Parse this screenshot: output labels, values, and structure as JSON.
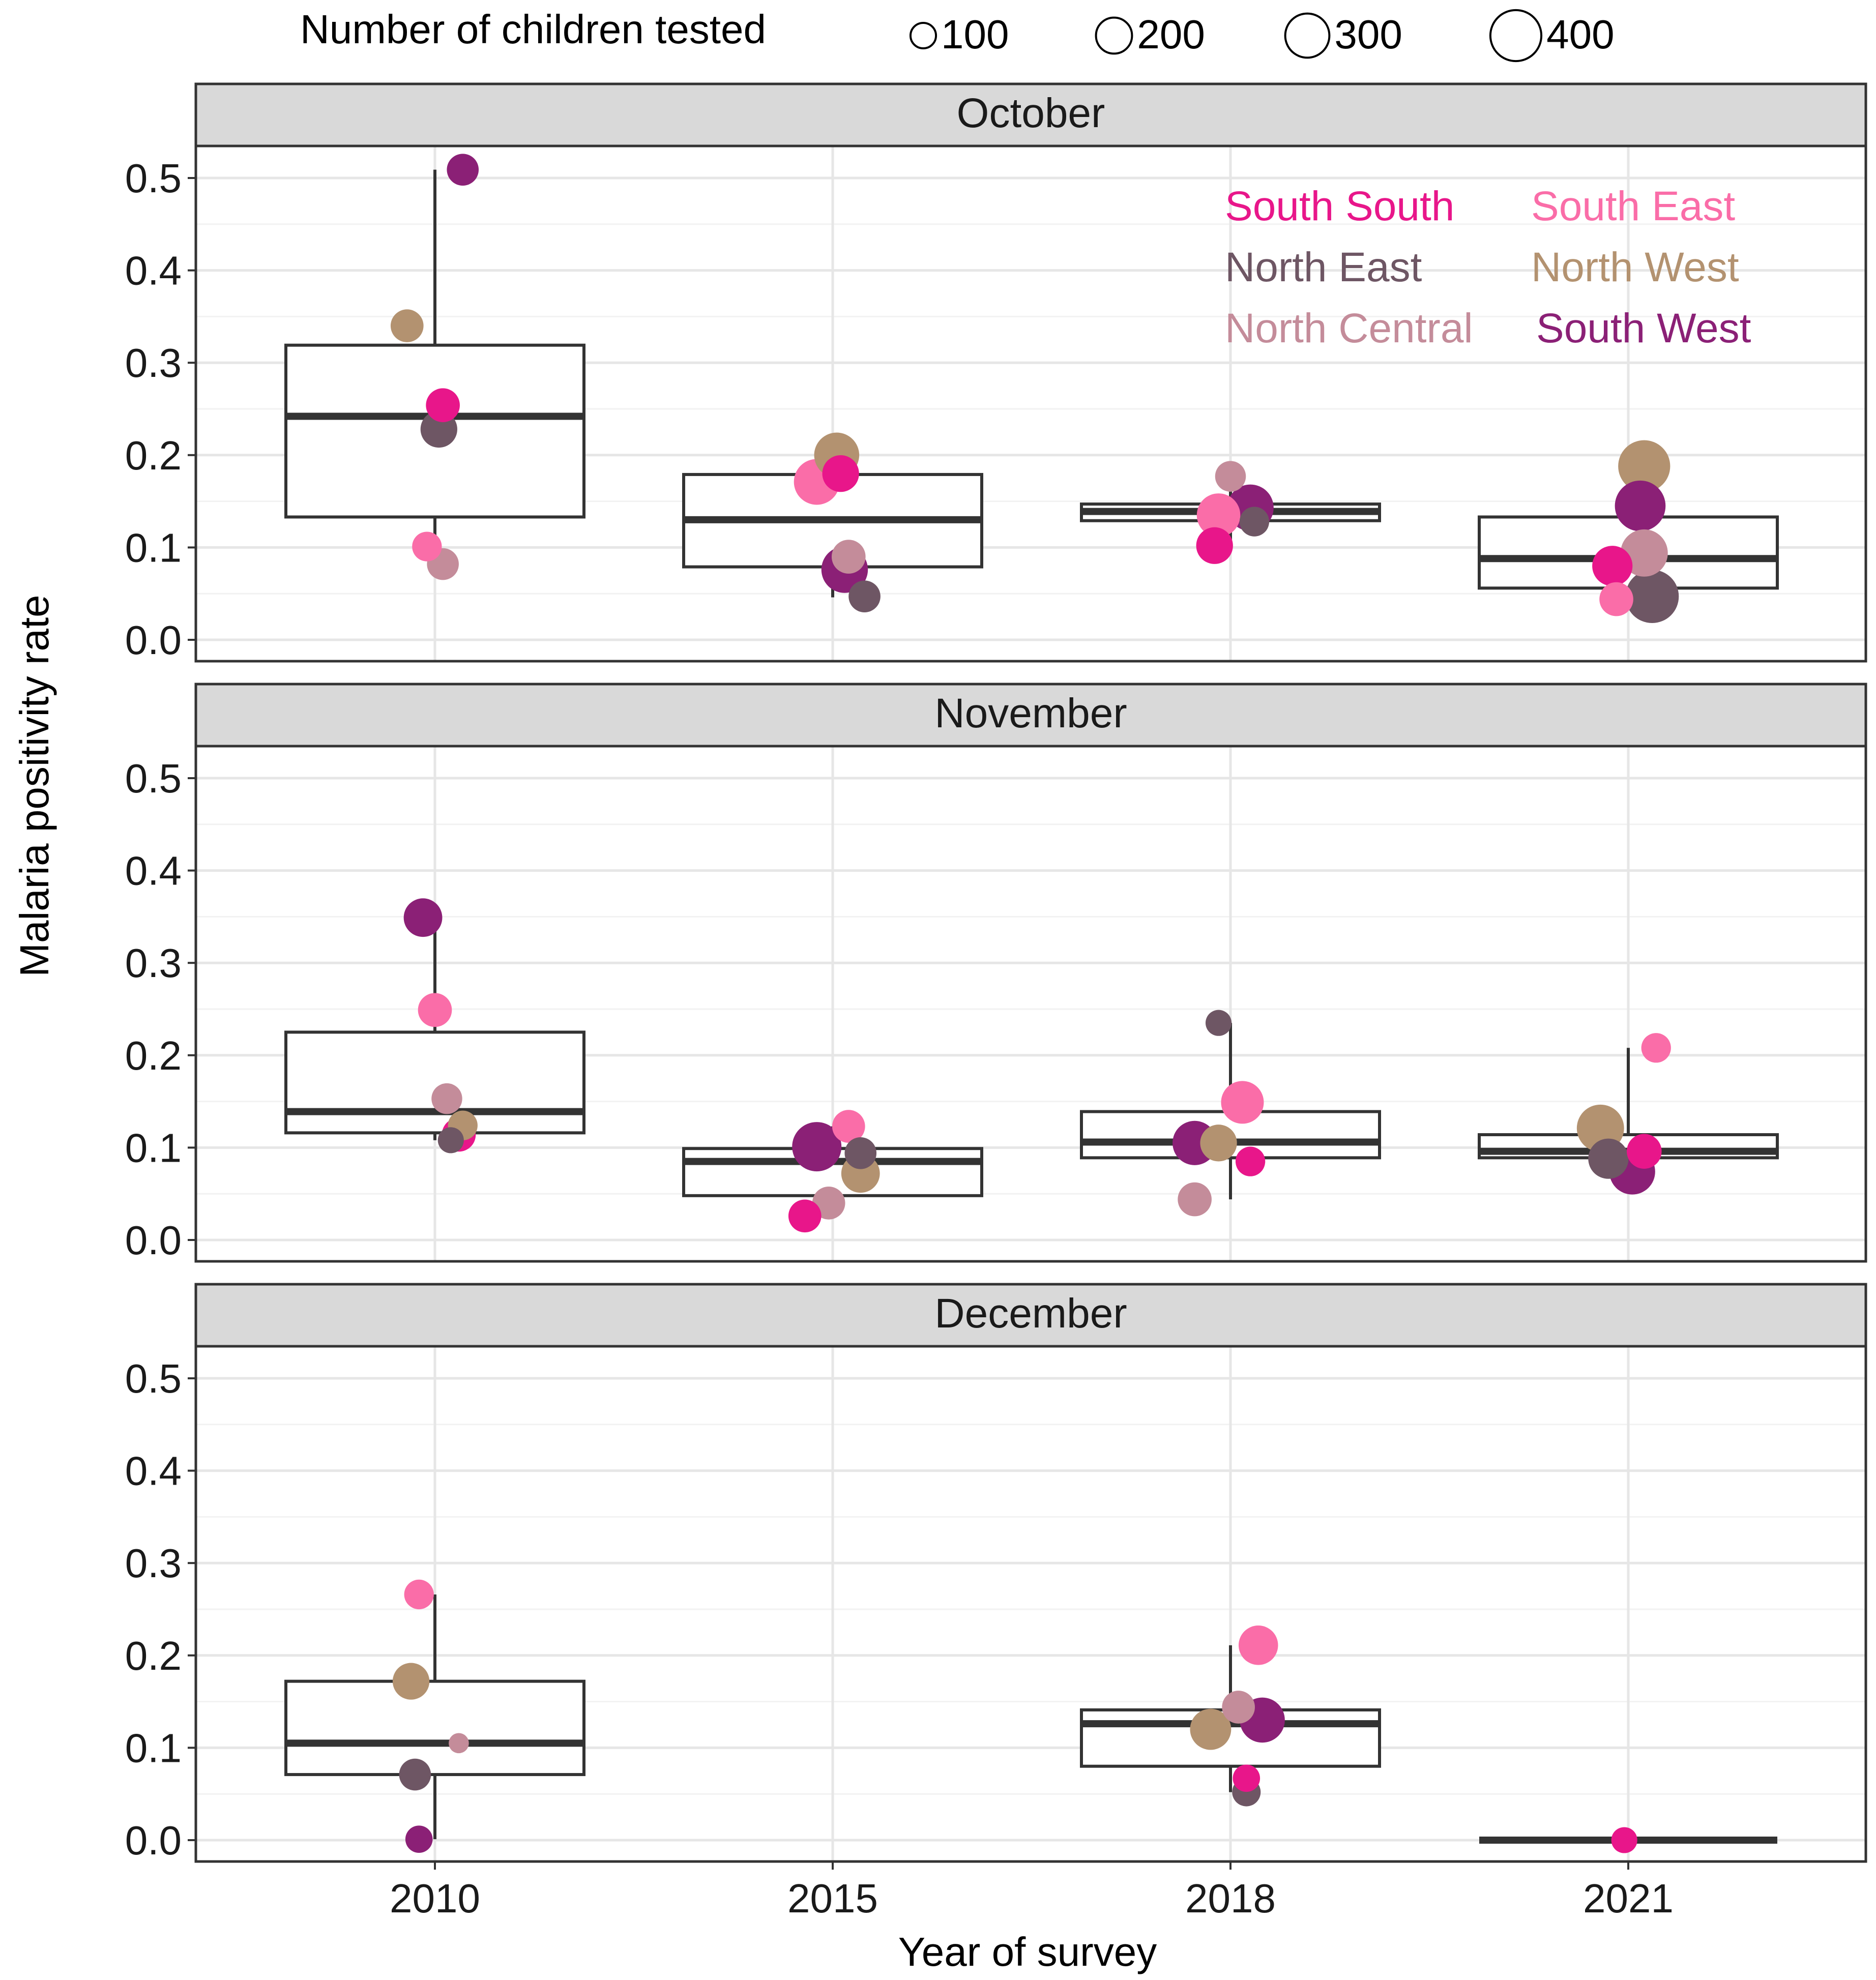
{
  "chart_data": {
    "type": "boxplot-bubble",
    "title": "",
    "xlabel": "Year of survey",
    "ylabel": "Malaria positivity rate",
    "x_categories": [
      "2010",
      "2015",
      "2018",
      "2021"
    ],
    "ylim": [
      0,
      0.5
    ],
    "yticks": [
      "0.0",
      "0.1",
      "0.2",
      "0.3",
      "0.4",
      "0.5"
    ],
    "ytick_values": [
      0,
      0.1,
      0.2,
      0.3,
      0.4,
      0.5
    ],
    "size_legend": {
      "title": "Number of children tested",
      "values": [
        100,
        200,
        300,
        400
      ],
      "labels": [
        "100",
        "200",
        "300",
        "400"
      ]
    },
    "regions": [
      {
        "name": "South South",
        "color": "#E8168A"
      },
      {
        "name": "South East",
        "color": "#FA6DA8"
      },
      {
        "name": "North East",
        "color": "#6E5664"
      },
      {
        "name": "North West",
        "color": "#B39270"
      },
      {
        "name": "North Central",
        "color": "#C48C9A"
      },
      {
        "name": "South West",
        "color": "#8B2076"
      }
    ],
    "panels": [
      {
        "label": "October",
        "boxes": [
          {
            "year": "2010",
            "low": 0.08,
            "q1": 0.133,
            "median": 0.242,
            "q3": 0.319,
            "high": 0.509
          },
          {
            "year": "2015",
            "low": 0.046,
            "q1": 0.079,
            "median": 0.13,
            "q3": 0.179,
            "high": 0.2
          },
          {
            "year": "2018",
            "low": 0.101,
            "q1": 0.129,
            "median": 0.139,
            "q3": 0.147,
            "high": 0.177
          },
          {
            "year": "2021",
            "low": 0.043,
            "q1": 0.056,
            "median": 0.088,
            "q3": 0.133,
            "high": 0.188
          }
        ],
        "points": [
          {
            "year": "2010",
            "region": "South West",
            "value": 0.509,
            "n": 150,
            "jitter": 0.07
          },
          {
            "year": "2010",
            "region": "North West",
            "value": 0.34,
            "n": 160,
            "jitter": -0.07
          },
          {
            "year": "2010",
            "region": "South South",
            "value": 0.254,
            "n": 170,
            "jitter": 0.02
          },
          {
            "year": "2010",
            "region": "North East",
            "value": 0.228,
            "n": 200,
            "jitter": 0.01
          },
          {
            "year": "2010",
            "region": "South East",
            "value": 0.101,
            "n": 130,
            "jitter": -0.02
          },
          {
            "year": "2010",
            "region": "North Central",
            "value": 0.082,
            "n": 150,
            "jitter": 0.02
          },
          {
            "year": "2015",
            "region": "North West",
            "value": 0.2,
            "n": 300,
            "jitter": 0.01
          },
          {
            "year": "2015",
            "region": "South East",
            "value": 0.171,
            "n": 310,
            "jitter": -0.04
          },
          {
            "year": "2015",
            "region": "South South",
            "value": 0.18,
            "n": 200,
            "jitter": 0.02
          },
          {
            "year": "2015",
            "region": "North Central",
            "value": 0.09,
            "n": 170,
            "jitter": 0.04
          },
          {
            "year": "2015",
            "region": "South West",
            "value": 0.076,
            "n": 320,
            "jitter": 0.03
          },
          {
            "year": "2015",
            "region": "North East",
            "value": 0.047,
            "n": 150,
            "jitter": 0.08
          },
          {
            "year": "2018",
            "region": "North Central",
            "value": 0.177,
            "n": 140,
            "jitter": 0.0
          },
          {
            "year": "2018",
            "region": "South East",
            "value": 0.135,
            "n": 280,
            "jitter": -0.03
          },
          {
            "year": "2018",
            "region": "North East",
            "value": 0.128,
            "n": 130,
            "jitter": 0.06
          },
          {
            "year": "2018",
            "region": "South West",
            "value": 0.143,
            "n": 320,
            "jitter": 0.05
          },
          {
            "year": "2018",
            "region": "South South",
            "value": 0.102,
            "n": 200,
            "jitter": -0.04
          },
          {
            "year": "2021",
            "region": "North West",
            "value": 0.188,
            "n": 400,
            "jitter": 0.04
          },
          {
            "year": "2021",
            "region": "South West",
            "value": 0.145,
            "n": 380,
            "jitter": 0.03
          },
          {
            "year": "2021",
            "region": "North Central",
            "value": 0.094,
            "n": 330,
            "jitter": 0.04
          },
          {
            "year": "2021",
            "region": "South South",
            "value": 0.08,
            "n": 240,
            "jitter": -0.04
          },
          {
            "year": "2021",
            "region": "South East",
            "value": 0.044,
            "n": 170,
            "jitter": -0.03
          },
          {
            "year": "2021",
            "region": "North East",
            "value": 0.047,
            "n": 420,
            "jitter": 0.06
          }
        ]
      },
      {
        "label": "November",
        "boxes": [
          {
            "year": "2010",
            "low": 0.108,
            "q1": 0.116,
            "median": 0.139,
            "q3": 0.225,
            "high": 0.349
          },
          {
            "year": "2015",
            "low": 0.026,
            "q1": 0.048,
            "median": 0.085,
            "q3": 0.099,
            "high": 0.123
          },
          {
            "year": "2018",
            "low": 0.044,
            "q1": 0.089,
            "median": 0.106,
            "q3": 0.139,
            "high": 0.235
          },
          {
            "year": "2021",
            "low": 0.074,
            "q1": 0.089,
            "median": 0.096,
            "q3": 0.114,
            "high": 0.208
          }
        ],
        "points": [
          {
            "year": "2010",
            "region": "South West",
            "value": 0.349,
            "n": 220,
            "jitter": -0.03
          },
          {
            "year": "2010",
            "region": "South East",
            "value": 0.249,
            "n": 170,
            "jitter": 0.0
          },
          {
            "year": "2010",
            "region": "North Central",
            "value": 0.153,
            "n": 140,
            "jitter": 0.03
          },
          {
            "year": "2010",
            "region": "North West",
            "value": 0.124,
            "n": 130,
            "jitter": 0.07
          },
          {
            "year": "2010",
            "region": "North East",
            "value": 0.108,
            "n": 100,
            "jitter": 0.04
          },
          {
            "year": "2010",
            "region": "South South",
            "value": 0.114,
            "n": 170,
            "jitter": 0.06
          },
          {
            "year": "2015",
            "region": "South East",
            "value": 0.123,
            "n": 160,
            "jitter": 0.04
          },
          {
            "year": "2015",
            "region": "South West",
            "value": 0.101,
            "n": 360,
            "jitter": -0.04
          },
          {
            "year": "2015",
            "region": "North East",
            "value": 0.094,
            "n": 150,
            "jitter": 0.07
          },
          {
            "year": "2015",
            "region": "North West",
            "value": 0.072,
            "n": 220,
            "jitter": 0.07
          },
          {
            "year": "2015",
            "region": "North Central",
            "value": 0.04,
            "n": 160,
            "jitter": -0.01
          },
          {
            "year": "2015",
            "region": "South South",
            "value": 0.026,
            "n": 160,
            "jitter": -0.07
          },
          {
            "year": "2018",
            "region": "North East",
            "value": 0.235,
            "n": 100,
            "jitter": -0.03
          },
          {
            "year": "2018",
            "region": "South East",
            "value": 0.149,
            "n": 270,
            "jitter": 0.03
          },
          {
            "year": "2018",
            "region": "North West",
            "value": 0.105,
            "n": 200,
            "jitter": -0.03
          },
          {
            "year": "2018",
            "region": "South West",
            "value": 0.105,
            "n": 290,
            "jitter": -0.09
          },
          {
            "year": "2018",
            "region": "South South",
            "value": 0.085,
            "n": 130,
            "jitter": 0.05
          },
          {
            "year": "2018",
            "region": "North Central",
            "value": 0.044,
            "n": 170,
            "jitter": -0.09
          },
          {
            "year": "2021",
            "region": "South East",
            "value": 0.208,
            "n": 130,
            "jitter": 0.07
          },
          {
            "year": "2021",
            "region": "North West",
            "value": 0.121,
            "n": 330,
            "jitter": -0.07
          },
          {
            "year": "2021",
            "region": "South South",
            "value": 0.096,
            "n": 180,
            "jitter": 0.04
          },
          {
            "year": "2021",
            "region": "North East",
            "value": 0.088,
            "n": 240,
            "jitter": -0.05
          },
          {
            "year": "2021",
            "region": "South West",
            "value": 0.074,
            "n": 310,
            "jitter": 0.01
          }
        ]
      },
      {
        "label": "December",
        "boxes": [
          {
            "year": "2010",
            "low": 0.001,
            "q1": 0.071,
            "median": 0.105,
            "q3": 0.172,
            "high": 0.266
          },
          {
            "year": "2018",
            "low": 0.052,
            "q1": 0.08,
            "median": 0.126,
            "q3": 0.141,
            "high": 0.211
          },
          {
            "year": "2021",
            "low": 0.0,
            "q1": 0.0,
            "median": 0.0,
            "q3": 0.0,
            "high": 0.0
          }
        ],
        "points": [
          {
            "year": "2010",
            "region": "South East",
            "value": 0.266,
            "n": 130,
            "jitter": -0.04
          },
          {
            "year": "2010",
            "region": "North West",
            "value": 0.172,
            "n": 200,
            "jitter": -0.06
          },
          {
            "year": "2010",
            "region": "North Central",
            "value": 0.105,
            "n": 60,
            "jitter": 0.06
          },
          {
            "year": "2010",
            "region": "North East",
            "value": 0.071,
            "n": 150,
            "jitter": -0.05
          },
          {
            "year": "2010",
            "region": "South West",
            "value": 0.001,
            "n": 110,
            "jitter": -0.04
          },
          {
            "year": "2018",
            "region": "South East",
            "value": 0.211,
            "n": 230,
            "jitter": 0.07
          },
          {
            "year": "2018",
            "region": "North Central",
            "value": 0.144,
            "n": 160,
            "jitter": 0.02
          },
          {
            "year": "2018",
            "region": "South West",
            "value": 0.13,
            "n": 300,
            "jitter": 0.08
          },
          {
            "year": "2018",
            "region": "North West",
            "value": 0.12,
            "n": 250,
            "jitter": -0.05
          },
          {
            "year": "2018",
            "region": "South South",
            "value": 0.067,
            "n": 110,
            "jitter": 0.04
          },
          {
            "year": "2018",
            "region": "North East",
            "value": 0.052,
            "n": 120,
            "jitter": 0.04
          },
          {
            "year": "2021",
            "region": "South South",
            "value": 0.0,
            "n": 100,
            "jitter": -0.01
          }
        ]
      }
    ]
  }
}
